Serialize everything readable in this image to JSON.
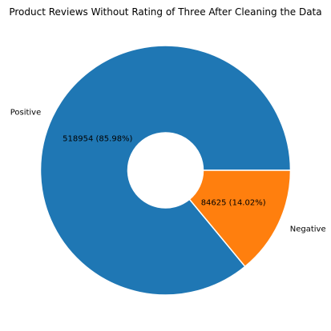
{
  "chart_data": {
    "type": "pie",
    "title": "Product Reviews Without Rating of Three After Cleaning the Data",
    "categories": [
      "Positive",
      "Negative"
    ],
    "values": [
      518954,
      84625
    ],
    "percentages": [
      85.98,
      14.02
    ],
    "value_labels": [
      "518954  (85.98%)",
      "84625  (14.02%)"
    ],
    "colors": [
      "#1f77b4",
      "#ff7f0e"
    ],
    "legend": "none",
    "style": "donut"
  }
}
